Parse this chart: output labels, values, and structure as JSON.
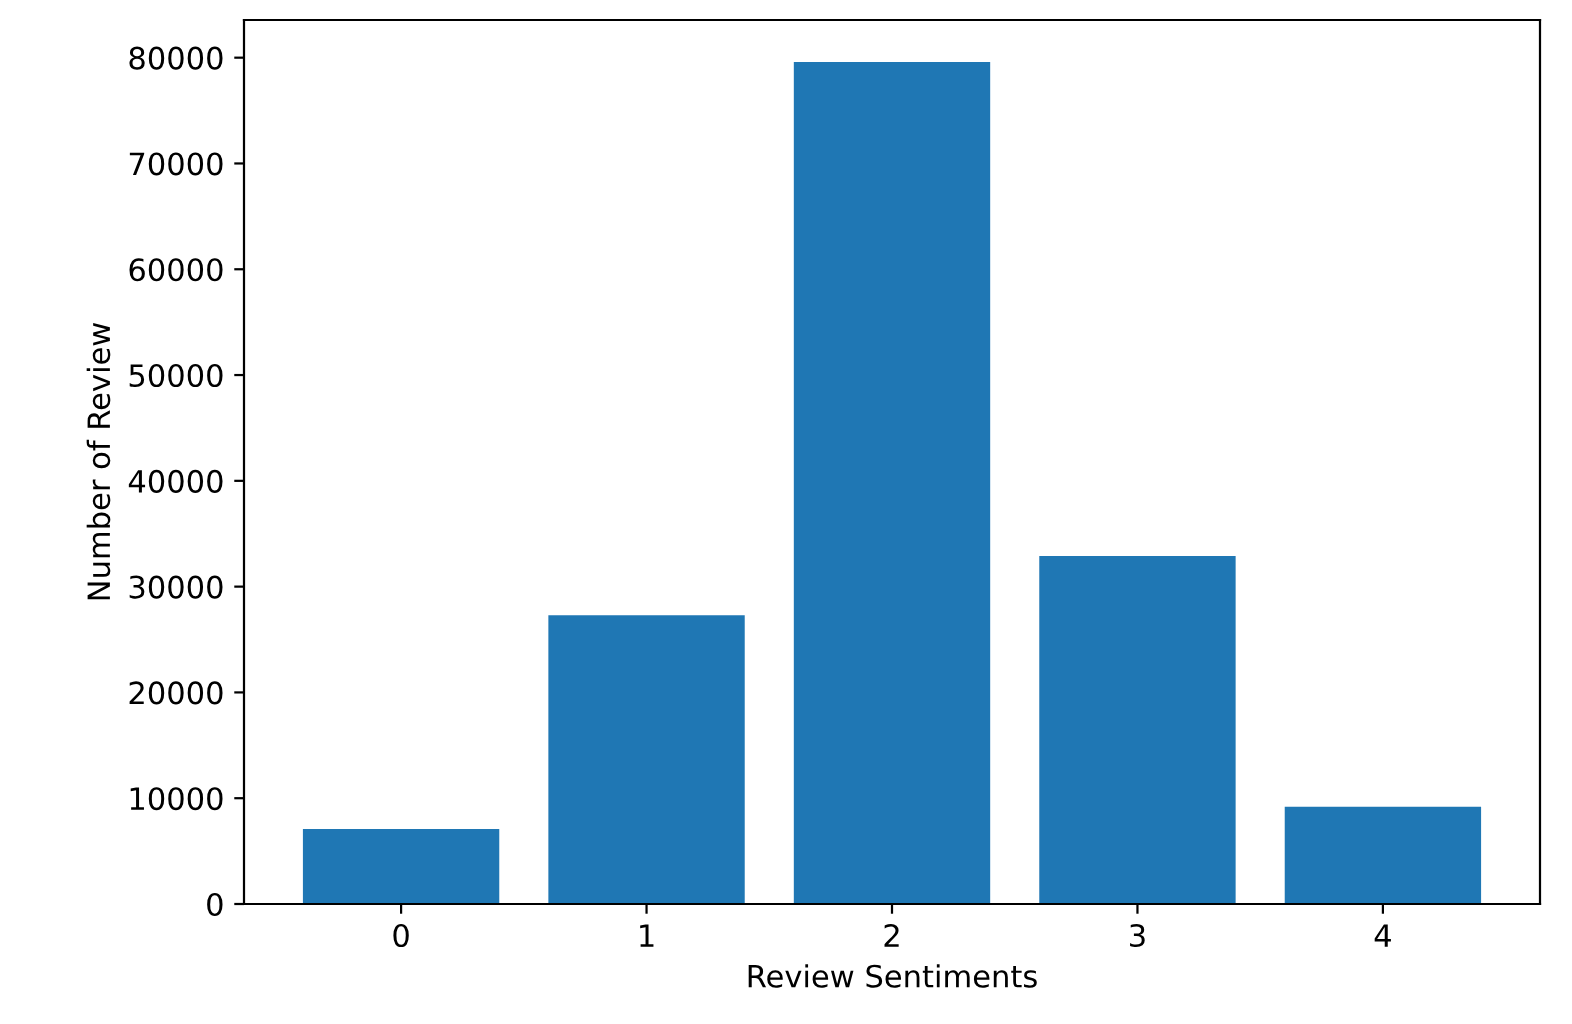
{
  "chart_data": {
    "type": "bar",
    "xlabel": "Review Sentiments",
    "ylabel": "Number of Review",
    "categories": [
      "0",
      "1",
      "2",
      "3",
      "4"
    ],
    "values": [
      7100,
      27300,
      79600,
      32900,
      9200
    ],
    "color": "#1f77b4",
    "ylim": [
      0,
      83561
    ],
    "yticks": [
      0,
      10000,
      20000,
      30000,
      40000,
      50000,
      60000,
      70000,
      80000
    ],
    "grid": false,
    "legend": false
  }
}
